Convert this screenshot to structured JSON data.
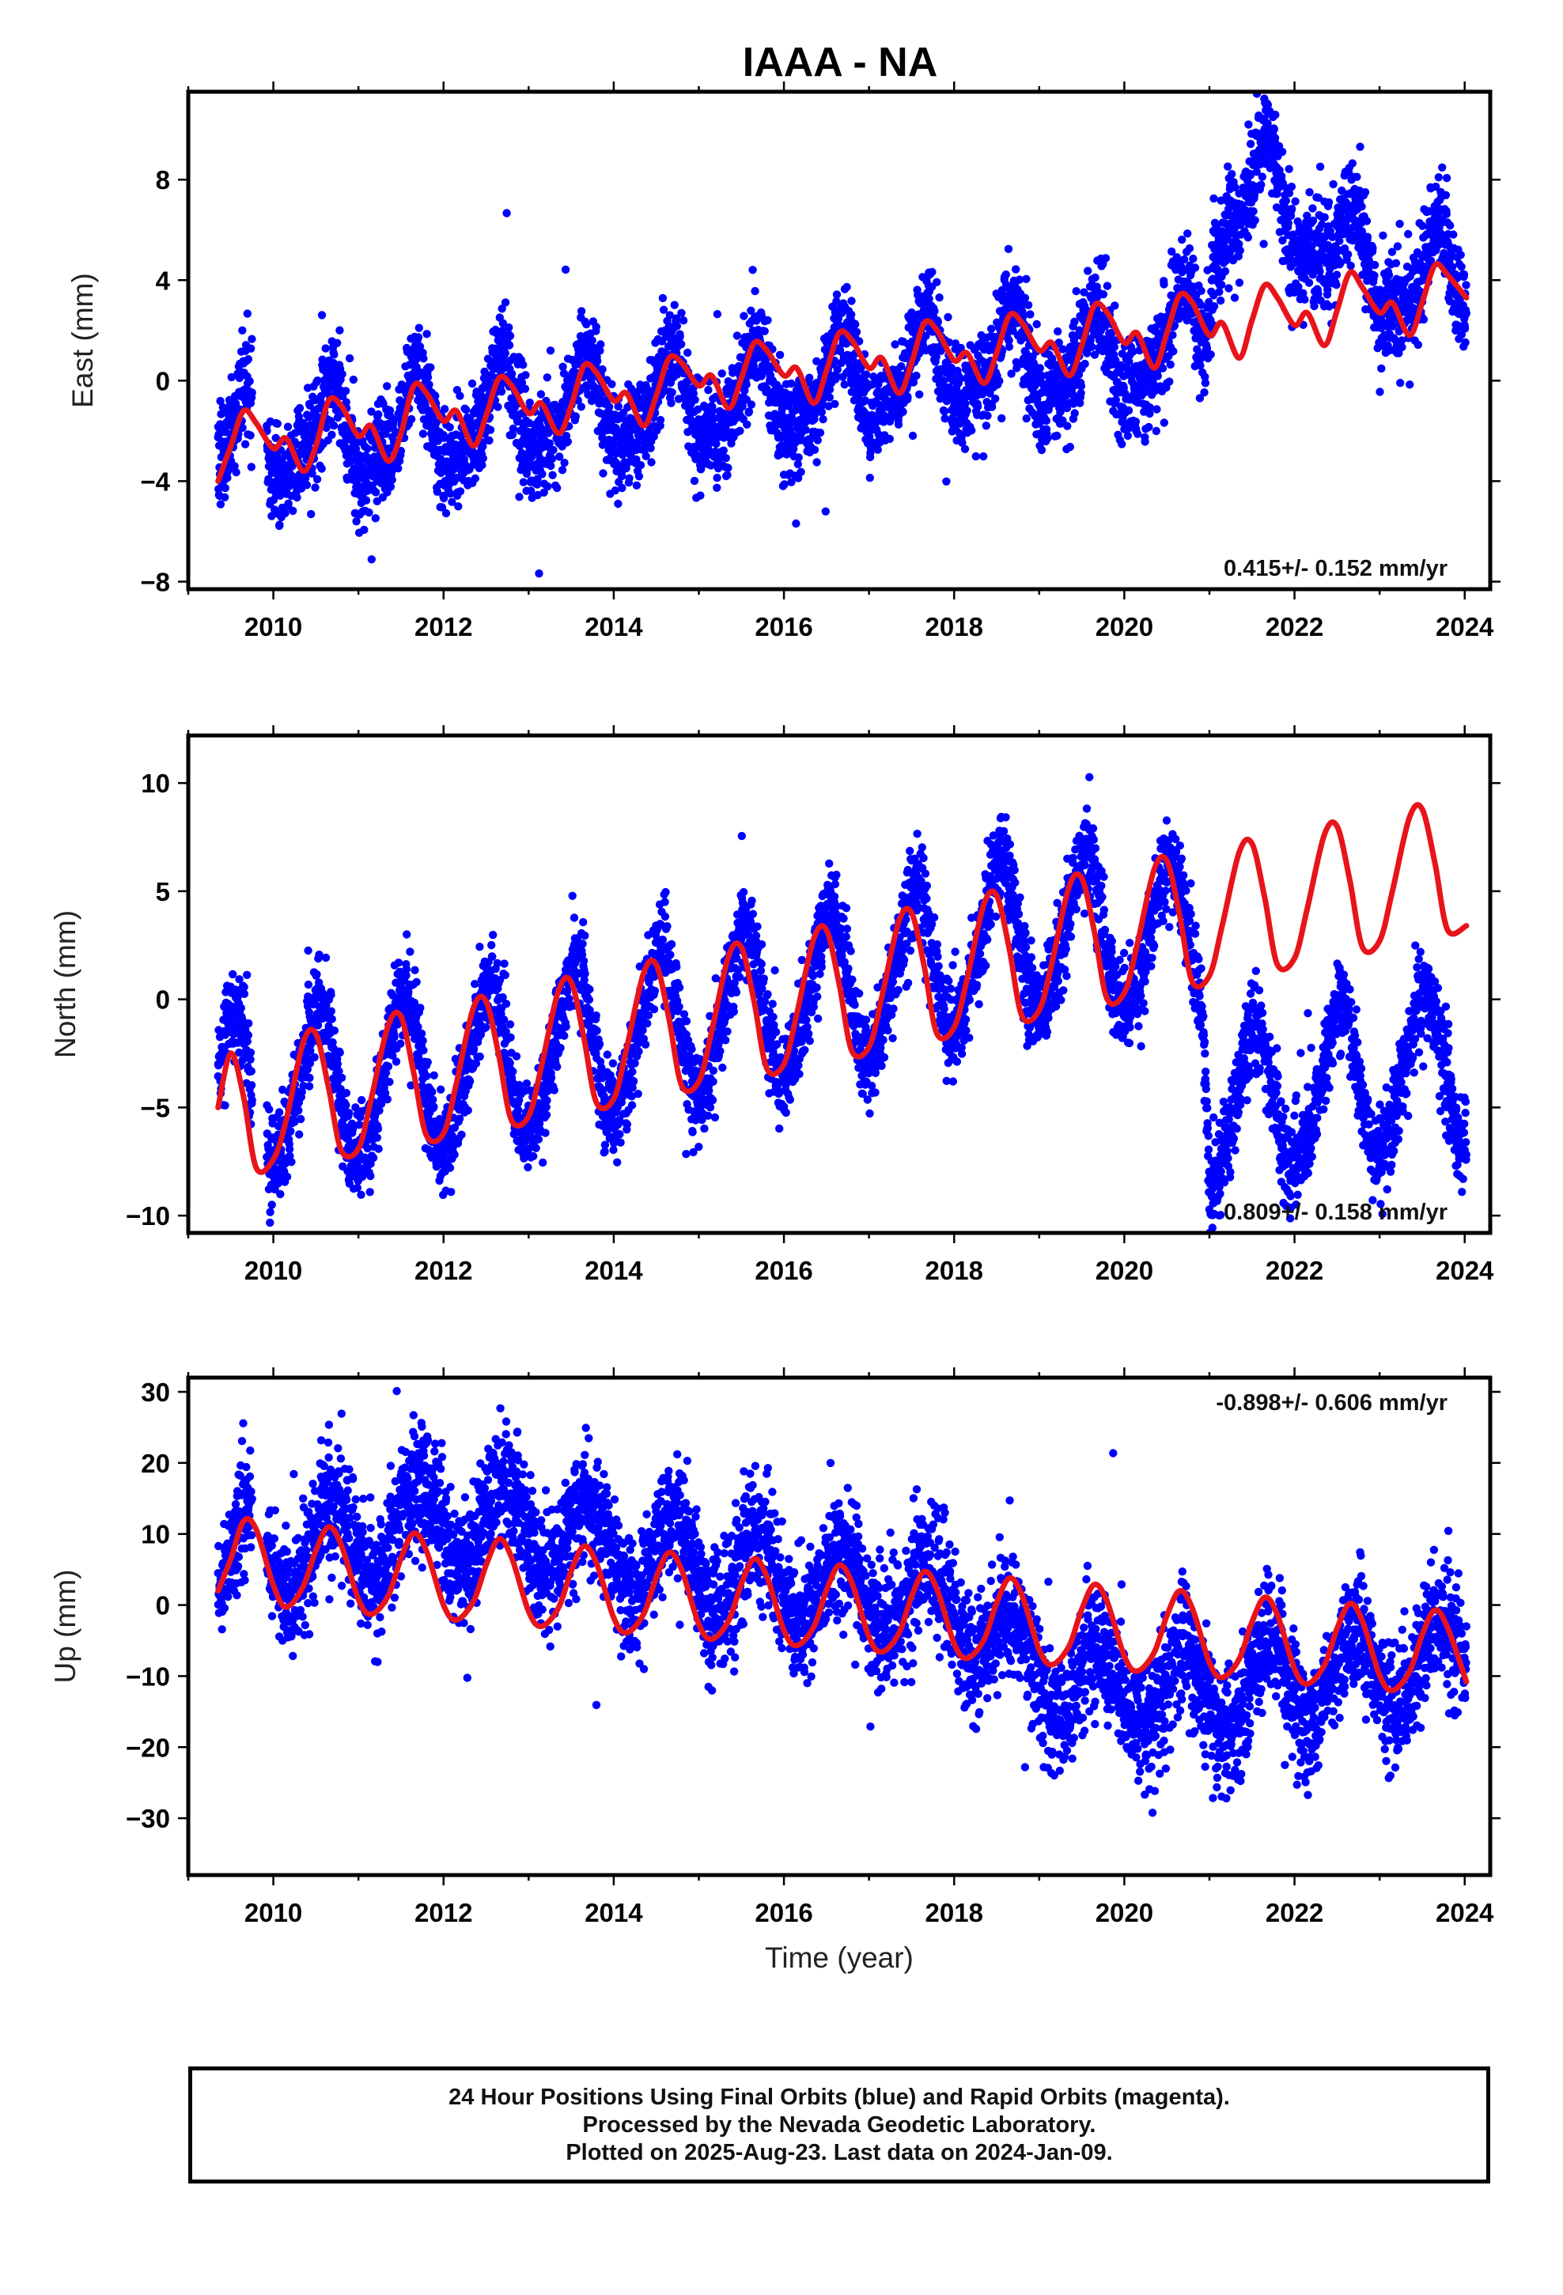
{
  "title": "IAAA - NA",
  "chart_data": [
    {
      "type": "scatter",
      "name": "east",
      "ylabel": "East (mm)",
      "xlabel": "",
      "xlim": [
        2009.0,
        2024.3
      ],
      "ylim": [
        -8.3,
        11.5
      ],
      "xticks": [
        2010,
        2012,
        2014,
        2016,
        2018,
        2020,
        2022,
        2024
      ],
      "yticks": [
        -8,
        -4,
        0,
        4,
        8
      ],
      "ytick_labels": [
        "−8",
        "−4",
        "0",
        "4",
        "8"
      ],
      "rate_label": "0.415+/- 0.152 mm/yr",
      "rate_position": "bottom-right",
      "colors": {
        "data": "#0000ff",
        "fit": "#e8141b"
      },
      "data_start": 2009.35,
      "data_end": 2024.02,
      "gap": [
        2009.75,
        2009.92
      ],
      "trend": {
        "anchors": [
          [
            2009.35,
            -2.6
          ],
          [
            2011.0,
            -2.2
          ],
          [
            2013.0,
            -1.2
          ],
          [
            2016.0,
            -0.6
          ],
          [
            2018.0,
            0.6
          ],
          [
            2020.0,
            0.8
          ],
          [
            2020.95,
            2.0
          ],
          [
            2021.05,
            6.4
          ],
          [
            2021.6,
            7.8
          ],
          [
            2022.5,
            5.0
          ],
          [
            2023.3,
            3.6
          ],
          [
            2024.02,
            4.2
          ]
        ]
      },
      "seasonal": {
        "annual_amp": 1.7,
        "annual_peak": 0.65,
        "semi_amp": 0.6,
        "semi_peak": 0.2
      },
      "scatter_sd": 1.0,
      "fit": {
        "x": [
          2009.35,
          2009.5,
          2009.65,
          2009.8,
          2010.0,
          2010.15,
          2010.35,
          2010.5,
          2010.65,
          2010.8,
          2011.0,
          2011.15,
          2011.35,
          2011.5,
          2011.65,
          2011.8,
          2012.0,
          2012.15,
          2012.35,
          2012.5,
          2012.65,
          2012.8,
          2013.0,
          2013.15,
          2013.35,
          2013.5,
          2013.65,
          2013.8,
          2014.0,
          2014.15,
          2014.35,
          2014.5,
          2014.65,
          2014.8,
          2015.0,
          2015.15,
          2015.35,
          2015.5,
          2015.65,
          2015.8,
          2016.0,
          2016.15,
          2016.35,
          2016.5,
          2016.65,
          2016.8,
          2017.0,
          2017.15,
          2017.35,
          2017.5,
          2017.65,
          2017.8,
          2018.0,
          2018.15,
          2018.35,
          2018.5,
          2018.65,
          2018.8,
          2019.0,
          2019.15,
          2019.35,
          2019.5,
          2019.65,
          2019.8,
          2020.0,
          2020.15,
          2020.35,
          2020.5,
          2020.65,
          2020.8,
          2021.0,
          2021.15,
          2021.35,
          2021.5,
          2021.65,
          2021.8,
          2022.0,
          2022.15,
          2022.35,
          2022.5,
          2022.65,
          2022.8,
          2023.0,
          2023.15,
          2023.35,
          2023.5,
          2023.65,
          2023.8,
          2024.02
        ],
        "y": [
          -4.0,
          -2.6,
          -1.2,
          -1.7,
          -2.7,
          -2.3,
          -3.6,
          -2.6,
          -0.8,
          -1.0,
          -2.2,
          -1.8,
          -3.2,
          -2.1,
          -0.2,
          -0.5,
          -1.6,
          -1.2,
          -2.6,
          -1.4,
          0.1,
          -0.2,
          -1.3,
          -0.9,
          -2.1,
          -1.0,
          0.6,
          0.3,
          -0.8,
          -0.5,
          -1.8,
          -0.6,
          0.9,
          0.7,
          -0.2,
          0.2,
          -1.1,
          0.1,
          1.5,
          1.2,
          0.2,
          0.5,
          -0.9,
          0.4,
          1.9,
          1.6,
          0.5,
          0.9,
          -0.5,
          0.7,
          2.3,
          2.0,
          0.8,
          1.1,
          -0.1,
          1.1,
          2.6,
          2.3,
          1.2,
          1.5,
          0.2,
          1.4,
          3.0,
          2.7,
          1.5,
          1.9,
          0.5,
          1.9,
          3.4,
          3.1,
          1.8,
          2.3,
          0.9,
          2.4,
          3.8,
          3.3,
          2.2,
          2.7,
          1.4,
          2.8,
          4.3,
          3.7,
          2.7,
          3.1,
          1.8,
          3.1,
          4.6,
          4.2,
          3.3
        ]
      }
    },
    {
      "type": "scatter",
      "name": "north",
      "ylabel": "North (mm)",
      "xlabel": "",
      "xlim": [
        2009.0,
        2024.3
      ],
      "ylim": [
        -10.8,
        12.2
      ],
      "xticks": [
        2010,
        2012,
        2014,
        2016,
        2018,
        2020,
        2022,
        2024
      ],
      "yticks": [
        -10,
        -5,
        0,
        5,
        10
      ],
      "ytick_labels": [
        "−10",
        "−5",
        "0",
        "5",
        "10"
      ],
      "rate_label": "0.809+/- 0.158 mm/yr",
      "rate_position": "bottom-right",
      "colors": {
        "data": "#0000ff",
        "fit": "#e8141b"
      },
      "data_start": 2009.35,
      "data_end": 2024.02,
      "gap": [
        2009.75,
        2009.92
      ],
      "trend": {
        "anchors": [
          [
            2009.35,
            -4.5
          ],
          [
            2011.0,
            -4.0
          ],
          [
            2013.0,
            -2.6
          ],
          [
            2015.0,
            -1.0
          ],
          [
            2017.0,
            0.7
          ],
          [
            2019.0,
            3.2
          ],
          [
            2020.93,
            2.5
          ],
          [
            2021.0,
            -5.5
          ],
          [
            2022.0,
            -4.5
          ],
          [
            2023.0,
            -3.5
          ],
          [
            2024.02,
            -3.2
          ]
        ]
      },
      "seasonal": {
        "annual_amp": 3.5,
        "annual_peak": 0.52,
        "semi_amp": 0.4,
        "semi_peak": 0.1
      },
      "scatter_sd": 1.05,
      "fit": {
        "x": [
          2009.35,
          2009.5,
          2009.65,
          2009.8,
          2010.0,
          2010.15,
          2010.35,
          2010.5,
          2010.65,
          2010.8,
          2011.0,
          2011.15,
          2011.35,
          2011.5,
          2011.65,
          2011.8,
          2012.0,
          2012.15,
          2012.35,
          2012.5,
          2012.65,
          2012.8,
          2013.0,
          2013.15,
          2013.35,
          2013.5,
          2013.65,
          2013.8,
          2014.0,
          2014.15,
          2014.35,
          2014.5,
          2014.65,
          2014.8,
          2015.0,
          2015.15,
          2015.35,
          2015.5,
          2015.65,
          2015.8,
          2016.0,
          2016.15,
          2016.35,
          2016.5,
          2016.65,
          2016.8,
          2017.0,
          2017.15,
          2017.35,
          2017.5,
          2017.65,
          2017.8,
          2018.0,
          2018.15,
          2018.35,
          2018.5,
          2018.65,
          2018.8,
          2019.0,
          2019.15,
          2019.35,
          2019.5,
          2019.65,
          2019.8,
          2020.0,
          2020.15,
          2020.35,
          2020.5,
          2020.65,
          2020.8,
          2021.0,
          2021.15,
          2021.35,
          2021.5,
          2021.65,
          2021.8,
          2022.0,
          2022.15,
          2022.35,
          2022.5,
          2022.65,
          2022.8,
          2023.0,
          2023.15,
          2023.35,
          2023.5,
          2023.65,
          2023.8,
          2024.02
        ],
        "y": [
          -5.0,
          -2.5,
          -4.5,
          -7.8,
          -7.4,
          -5.6,
          -2.0,
          -1.6,
          -4.1,
          -7.0,
          -6.9,
          -4.6,
          -1.2,
          -0.8,
          -3.4,
          -6.3,
          -6.2,
          -3.9,
          -0.4,
          -0.1,
          -2.6,
          -5.6,
          -5.4,
          -3.1,
          0.4,
          0.8,
          -1.8,
          -4.8,
          -4.6,
          -2.3,
          1.2,
          1.6,
          -0.9,
          -4.0,
          -3.8,
          -1.5,
          2.0,
          2.4,
          -0.1,
          -3.2,
          -3.0,
          -0.7,
          2.8,
          3.2,
          0.7,
          -2.4,
          -2.2,
          0.1,
          3.6,
          4.0,
          1.5,
          -1.6,
          -1.3,
          0.9,
          4.4,
          4.8,
          2.3,
          -0.8,
          -0.5,
          1.7,
          5.2,
          5.6,
          3.1,
          0.0,
          0.3,
          2.5,
          6.0,
          6.4,
          3.9,
          0.8,
          1.1,
          3.4,
          6.8,
          7.2,
          4.7,
          1.6,
          1.9,
          4.2,
          7.6,
          8.0,
          5.5,
          2.4,
          2.7,
          5.0,
          8.4,
          8.8,
          6.3,
          3.2,
          3.4
        ]
      }
    },
    {
      "type": "scatter",
      "name": "up",
      "ylabel": "Up (mm)",
      "xlabel": "Time (year)",
      "xlim": [
        2009.0,
        2024.3
      ],
      "ylim": [
        -38,
        32
      ],
      "xticks": [
        2010,
        2012,
        2014,
        2016,
        2018,
        2020,
        2022,
        2024
      ],
      "yticks": [
        -30,
        -20,
        -10,
        0,
        10,
        20,
        30
      ],
      "ytick_labels": [
        "−30",
        "−20",
        "−10",
        "0",
        "10",
        "20",
        "30"
      ],
      "rate_label": "-0.898+/- 0.606 mm/yr",
      "rate_position": "top-right",
      "colors": {
        "data": "#0000ff",
        "fit": "#e8141b"
      },
      "data_start": 2009.35,
      "data_end": 2024.02,
      "gap": [
        2009.75,
        2009.92
      ],
      "trend": {
        "anchors": [
          [
            2009.35,
            6.0
          ],
          [
            2011.0,
            9.0
          ],
          [
            2012.0,
            12.0
          ],
          [
            2013.0,
            10.0
          ],
          [
            2015.0,
            6.0
          ],
          [
            2016.0,
            3.0
          ],
          [
            2018.0,
            0.0
          ],
          [
            2019.0,
            -10.0
          ],
          [
            2020.0,
            -12.0
          ],
          [
            2022.0,
            -11.0
          ],
          [
            2024.02,
            -7.0
          ]
        ]
      },
      "seasonal": {
        "annual_amp": 5.8,
        "annual_peak": 0.7,
        "semi_amp": 0.0,
        "semi_peak": 0.0
      },
      "scatter_sd": 4.3,
      "fit": {
        "x": [
          2009.35,
          2009.5,
          2009.65,
          2009.8,
          2010.0,
          2010.15,
          2010.35,
          2010.5,
          2010.65,
          2010.8,
          2011.0,
          2011.15,
          2011.35,
          2011.5,
          2011.65,
          2011.8,
          2012.0,
          2012.15,
          2012.35,
          2012.5,
          2012.65,
          2012.8,
          2013.0,
          2013.15,
          2013.35,
          2013.5,
          2013.65,
          2013.8,
          2014.0,
          2014.15,
          2014.35,
          2014.5,
          2014.65,
          2014.8,
          2015.0,
          2015.15,
          2015.35,
          2015.5,
          2015.65,
          2015.8,
          2016.0,
          2016.15,
          2016.35,
          2016.5,
          2016.65,
          2016.8,
          2017.0,
          2017.15,
          2017.35,
          2017.5,
          2017.65,
          2017.8,
          2018.0,
          2018.15,
          2018.35,
          2018.5,
          2018.65,
          2018.8,
          2019.0,
          2019.15,
          2019.35,
          2019.5,
          2019.65,
          2019.8,
          2020.0,
          2020.15,
          2020.35,
          2020.5,
          2020.65,
          2020.8,
          2021.0,
          2021.15,
          2021.35,
          2021.5,
          2021.65,
          2021.8,
          2022.0,
          2022.15,
          2022.35,
          2022.5,
          2022.65,
          2022.8,
          2023.0,
          2023.15,
          2023.35,
          2023.5,
          2023.65,
          2023.8,
          2024.02
        ],
        "y": [
          2.0,
          6.5,
          11.8,
          10.6,
          2.8,
          -0.3,
          2.6,
          7.7,
          11.0,
          8.4,
          0.8,
          -1.3,
          1.3,
          6.6,
          10.1,
          7.6,
          0.0,
          -2.1,
          0.5,
          5.6,
          9.3,
          6.7,
          -0.9,
          -3.0,
          -0.4,
          4.8,
          8.3,
          5.8,
          -1.8,
          -3.9,
          -1.3,
          3.9,
          7.4,
          4.9,
          -2.7,
          -4.8,
          -2.2,
          3.0,
          6.5,
          4.0,
          -3.6,
          -5.7,
          -3.1,
          2.1,
          5.6,
          3.1,
          -4.5,
          -6.6,
          -4.0,
          1.2,
          4.7,
          2.2,
          -5.4,
          -7.5,
          -4.9,
          0.3,
          3.8,
          1.3,
          -6.3,
          -8.4,
          -5.8,
          -0.6,
          2.9,
          0.4,
          -7.2,
          -9.3,
          -6.7,
          -1.5,
          2.0,
          -0.5,
          -8.1,
          -10.2,
          -7.6,
          -2.4,
          1.1,
          -1.4,
          -9.0,
          -11.1,
          -8.5,
          -3.3,
          0.2,
          -2.3,
          -9.9,
          -12.0,
          -9.4,
          -4.2,
          -0.7,
          -3.2,
          -10.8
        ]
      }
    }
  ],
  "footer": {
    "line1": "24 Hour Positions Using Final Orbits (blue) and Rapid Orbits (magenta).",
    "line2": "Processed by the Nevada Geodetic Laboratory.",
    "line3": "Plotted on 2025-Aug-23. Last data on 2024-Jan-09."
  }
}
